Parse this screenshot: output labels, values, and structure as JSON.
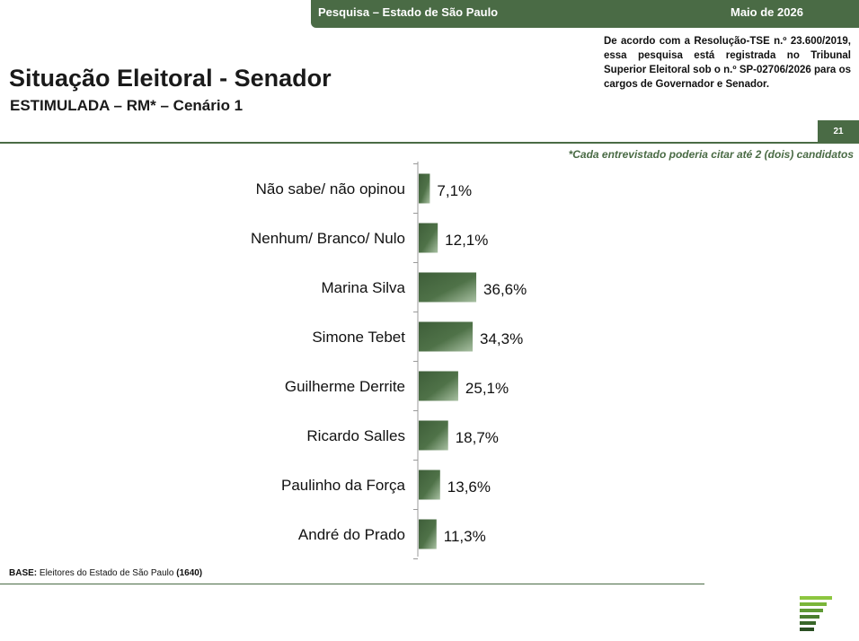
{
  "header": {
    "survey": "Pesquisa – Estado de São Paulo",
    "date": "Maio de 2026",
    "registration": "De acordo com a Resolução-TSE n.º 23.600/2019, essa pesquisa está registrada no Tribunal Superior Eleitoral sob o n.º SP-02706/2026 para os cargos de Governador e Senador.",
    "page_number": "21"
  },
  "title": "Situação Eleitoral - Senador",
  "subtitle": "ESTIMULADA – RM* – Cenário 1",
  "note": "*Cada entrevistado poderia citar até 2 (dois) candidatos",
  "footer": {
    "base_label": "BASE:",
    "base_text": " Eleitores do Estado de São Paulo ",
    "base_count": "(1640)"
  },
  "colors": {
    "accent": "#4a6b45",
    "bar_dark": "#3e5e39",
    "bar_light": "#a8c0a2"
  },
  "chart_data": {
    "type": "bar",
    "orientation": "horizontal",
    "categories": [
      "Não sabe/ não opinou",
      "Nenhum/ Branco/ Nulo",
      "Marina Silva",
      "Simone Tebet",
      "Guilherme Derrite",
      "Ricardo Salles",
      "Paulinho da Força",
      "André do Prado"
    ],
    "values": [
      7.1,
      12.1,
      36.6,
      34.3,
      25.1,
      18.7,
      13.6,
      11.3
    ],
    "value_labels": [
      "7,1%",
      "12,1%",
      "36,6%",
      "34,3%",
      "25,1%",
      "18,7%",
      "13,6%",
      "11,3%"
    ],
    "unit": "%",
    "grid": false,
    "legend": "none"
  }
}
